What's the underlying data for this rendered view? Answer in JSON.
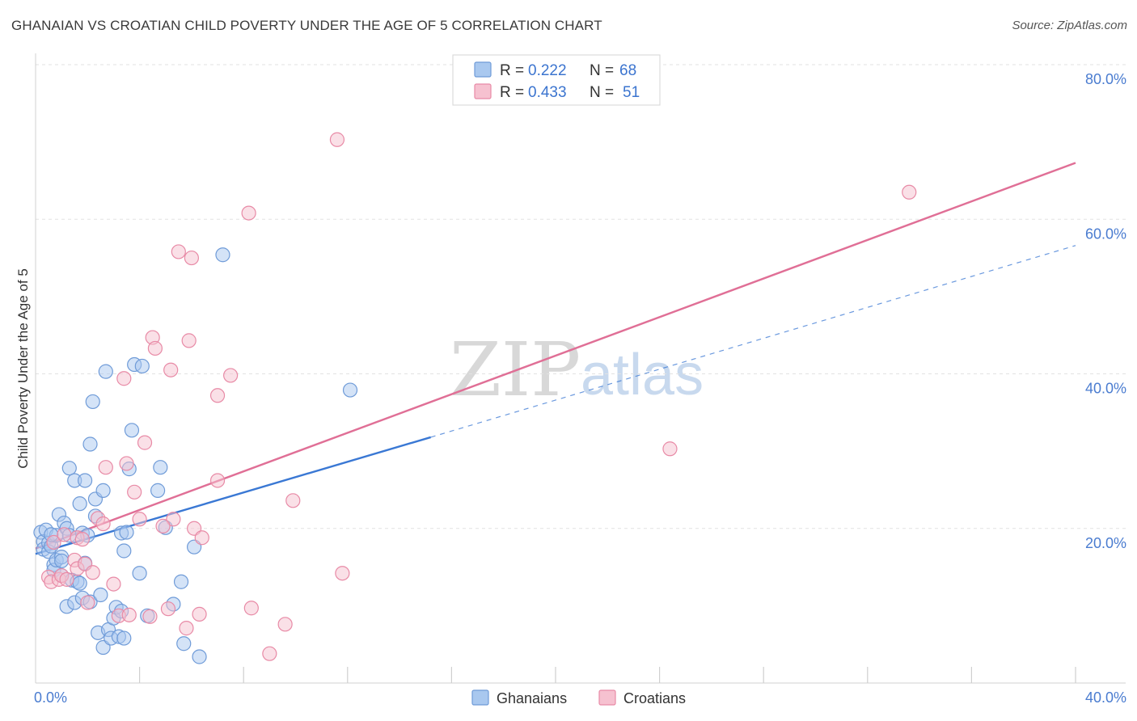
{
  "header": {
    "title": "GHANAIAN VS CROATIAN CHILD POVERTY UNDER THE AGE OF 5 CORRELATION CHART",
    "source": "Source: ZipAtlas.com"
  },
  "watermark": {
    "part1": "ZIP",
    "part2": "atlas"
  },
  "legend_top": {
    "rows": [
      {
        "r_label": "R =",
        "r_value": "0.222",
        "n_label": "N =",
        "n_value": "68"
      },
      {
        "r_label": "R =",
        "r_value": "0.433",
        "n_label": "N =",
        "n_value": "51"
      }
    ]
  },
  "legend_bottom": {
    "items": [
      "Ghanaians",
      "Croatians"
    ]
  },
  "colors": {
    "blue_fill": "#a9c8ef",
    "blue_stroke": "#6f9bd8",
    "blue_line": "#3a78d4",
    "pink_fill": "#f6c1d0",
    "pink_stroke": "#e88aa6",
    "pink_line": "#e06f96",
    "grid": "#e2e2e2",
    "tick_text": "#4a7cd0"
  },
  "chart_data": {
    "type": "scatter",
    "title": "GHANAIAN VS CROATIAN CHILD POVERTY UNDER THE AGE OF 5 CORRELATION CHART",
    "xlabel": "",
    "ylabel": "Child Poverty Under the Age of 5",
    "xlim": [
      0,
      40
    ],
    "ylim": [
      0,
      80
    ],
    "x_tick_labels": [
      "0.0%",
      "40.0%"
    ],
    "y_ticks": [
      20,
      40,
      60,
      80
    ],
    "y_tick_labels": [
      "20.0%",
      "40.0%",
      "60.0%",
      "80.0%"
    ],
    "grid": true,
    "legend_position": "top-center",
    "series": [
      {
        "name": "Ghanaians",
        "r": 0.222,
        "n": 68,
        "trend": {
          "x0": 0,
          "y0": 16.7,
          "x1": 15.2,
          "y1": 31.8,
          "dashed_to_x": 40,
          "dashed_to_y": 56.6
        },
        "points": [
          [
            0.2,
            19.5
          ],
          [
            0.3,
            18.3
          ],
          [
            0.3,
            17.3
          ],
          [
            0.4,
            19.8
          ],
          [
            0.5,
            18.1
          ],
          [
            0.5,
            17.0
          ],
          [
            0.6,
            17.7
          ],
          [
            0.7,
            15.3
          ],
          [
            0.7,
            14.6
          ],
          [
            0.8,
            15.9
          ],
          [
            0.8,
            19.1
          ],
          [
            0.9,
            21.8
          ],
          [
            1.0,
            16.3
          ],
          [
            1.0,
            13.9
          ],
          [
            1.1,
            20.7
          ],
          [
            1.2,
            20.0
          ],
          [
            1.2,
            9.9
          ],
          [
            1.3,
            19.1
          ],
          [
            1.3,
            27.8
          ],
          [
            1.4,
            13.3
          ],
          [
            1.5,
            10.4
          ],
          [
            1.5,
            26.2
          ],
          [
            1.6,
            13.1
          ],
          [
            1.7,
            23.2
          ],
          [
            1.7,
            12.9
          ],
          [
            1.8,
            11.0
          ],
          [
            1.8,
            19.4
          ],
          [
            1.9,
            15.5
          ],
          [
            2.0,
            19.1
          ],
          [
            2.1,
            10.5
          ],
          [
            2.1,
            30.9
          ],
          [
            2.2,
            36.4
          ],
          [
            2.3,
            21.6
          ],
          [
            2.3,
            23.8
          ],
          [
            2.4,
            6.5
          ],
          [
            2.5,
            11.4
          ],
          [
            2.6,
            24.9
          ],
          [
            2.6,
            4.6
          ],
          [
            2.7,
            40.3
          ],
          [
            2.8,
            6.9
          ],
          [
            2.9,
            5.8
          ],
          [
            3.0,
            8.4
          ],
          [
            3.1,
            9.8
          ],
          [
            3.2,
            6.0
          ],
          [
            3.3,
            19.4
          ],
          [
            3.4,
            17.1
          ],
          [
            3.4,
            5.8
          ],
          [
            3.5,
            19.5
          ],
          [
            3.6,
            27.7
          ],
          [
            3.7,
            32.7
          ],
          [
            3.8,
            41.2
          ],
          [
            4.0,
            14.2
          ],
          [
            4.1,
            41.0
          ],
          [
            4.3,
            8.7
          ],
          [
            4.7,
            24.9
          ],
          [
            4.8,
            27.9
          ],
          [
            5.0,
            20.1
          ],
          [
            5.3,
            10.2
          ],
          [
            5.6,
            13.1
          ],
          [
            5.7,
            5.1
          ],
          [
            6.1,
            17.6
          ],
          [
            6.3,
            3.4
          ],
          [
            7.2,
            55.4
          ],
          [
            12.1,
            37.9
          ],
          [
            1.9,
            26.2
          ],
          [
            0.6,
            19.2
          ],
          [
            1.0,
            15.8
          ],
          [
            3.3,
            9.3
          ]
        ]
      },
      {
        "name": "Croatians",
        "r": 0.433,
        "n": 51,
        "trend": {
          "x0": 0,
          "y0": 17.4,
          "x1": 40,
          "y1": 67.3
        },
        "points": [
          [
            0.5,
            13.7
          ],
          [
            0.6,
            13.1
          ],
          [
            0.7,
            18.2
          ],
          [
            0.9,
            13.4
          ],
          [
            1.0,
            13.9
          ],
          [
            1.1,
            19.2
          ],
          [
            1.2,
            13.4
          ],
          [
            1.5,
            15.9
          ],
          [
            1.6,
            18.8
          ],
          [
            1.6,
            14.8
          ],
          [
            1.8,
            18.6
          ],
          [
            1.9,
            15.4
          ],
          [
            2.0,
            10.4
          ],
          [
            2.2,
            14.3
          ],
          [
            2.4,
            21.3
          ],
          [
            2.6,
            20.6
          ],
          [
            2.7,
            27.9
          ],
          [
            3.0,
            12.8
          ],
          [
            3.2,
            8.7
          ],
          [
            3.4,
            39.4
          ],
          [
            3.5,
            28.4
          ],
          [
            3.6,
            8.8
          ],
          [
            3.8,
            24.7
          ],
          [
            4.0,
            21.2
          ],
          [
            4.2,
            31.1
          ],
          [
            4.4,
            8.6
          ],
          [
            4.5,
            44.7
          ],
          [
            4.6,
            43.3
          ],
          [
            5.1,
            9.6
          ],
          [
            5.2,
            40.5
          ],
          [
            5.3,
            21.2
          ],
          [
            5.5,
            55.8
          ],
          [
            5.8,
            7.1
          ],
          [
            5.9,
            44.3
          ],
          [
            6.0,
            55.0
          ],
          [
            6.1,
            20.0
          ],
          [
            6.3,
            8.9
          ],
          [
            6.4,
            18.8
          ],
          [
            7.0,
            26.2
          ],
          [
            7.0,
            37.2
          ],
          [
            7.5,
            39.8
          ],
          [
            8.2,
            60.8
          ],
          [
            8.3,
            9.7
          ],
          [
            9.0,
            3.8
          ],
          [
            9.6,
            7.6
          ],
          [
            9.9,
            23.6
          ],
          [
            11.6,
            70.3
          ],
          [
            11.8,
            14.2
          ],
          [
            24.4,
            30.3
          ],
          [
            33.6,
            63.5
          ],
          [
            4.9,
            20.3
          ]
        ]
      }
    ]
  }
}
